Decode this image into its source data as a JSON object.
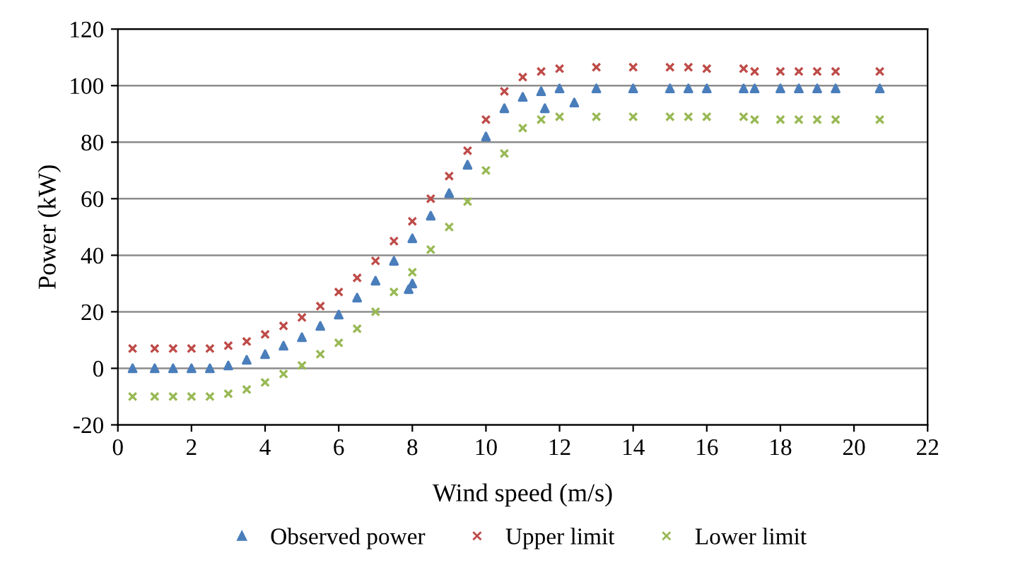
{
  "chart_data": {
    "type": "scatter",
    "xlabel": "Wind speed (m/s)",
    "ylabel": "Power (kW)",
    "xlim": [
      0,
      22
    ],
    "xticks": [
      0,
      2,
      4,
      6,
      8,
      10,
      12,
      14,
      16,
      18,
      20,
      22
    ],
    "ylim": [
      -20,
      120
    ],
    "yticks": [
      -20,
      0,
      20,
      40,
      60,
      80,
      100,
      120
    ],
    "grid": "y",
    "legend": "bottom",
    "series": [
      {
        "name": "Observed power",
        "color": "#4a7ebb",
        "marker": "triangle",
        "x": [
          0.4,
          1,
          1.5,
          2,
          2.5,
          3,
          3.5,
          4,
          4.5,
          5,
          5.5,
          6,
          6.5,
          7,
          7.5,
          7.9,
          8,
          8,
          8.5,
          9,
          9.5,
          10,
          10.5,
          11,
          11.5,
          11.6,
          12,
          12.4,
          13,
          14,
          15,
          15.5,
          16,
          17,
          17.3,
          18,
          18.5,
          19,
          19.5,
          20.7
        ],
        "values": [
          0,
          0,
          0,
          0,
          0,
          1,
          3,
          5,
          8,
          11,
          15,
          19,
          25,
          31,
          38,
          28,
          30,
          46,
          54,
          62,
          72,
          82,
          92,
          96,
          98,
          92,
          99,
          94,
          99,
          99,
          99,
          99,
          99,
          99,
          99,
          99,
          99,
          99,
          99,
          99
        ]
      },
      {
        "name": "Upper limit",
        "color": "#be4b48",
        "marker": "cross",
        "x": [
          0.4,
          1,
          1.5,
          2,
          2.5,
          3,
          3.5,
          4,
          4.5,
          5,
          5.5,
          6,
          6.5,
          7,
          7.5,
          8,
          8.5,
          9,
          9.5,
          10,
          10.5,
          11,
          11.5,
          12,
          13,
          14,
          15,
          15.5,
          16,
          17,
          17.3,
          18,
          18.5,
          19,
          19.5,
          20.7
        ],
        "values": [
          7,
          7,
          7,
          7,
          7,
          8,
          9.5,
          12,
          15,
          18,
          22,
          27,
          32,
          38,
          45,
          52,
          60,
          68,
          77,
          88,
          98,
          103,
          105,
          106,
          106.5,
          106.5,
          106.5,
          106.5,
          106,
          106,
          105,
          105,
          105,
          105,
          105,
          105
        ]
      },
      {
        "name": "Lower limit",
        "color": "#98b954",
        "marker": "cross",
        "x": [
          0.4,
          1,
          1.5,
          2,
          2.5,
          3,
          3.5,
          4,
          4.5,
          5,
          5.5,
          6,
          6.5,
          7,
          7.5,
          8,
          8.5,
          9,
          9.5,
          10,
          10.5,
          11,
          11.5,
          12,
          13,
          14,
          15,
          15.5,
          16,
          17,
          17.3,
          18,
          18.5,
          19,
          19.5,
          20.7
        ],
        "values": [
          -10,
          -10,
          -10,
          -10,
          -10,
          -9,
          -7.5,
          -5,
          -2,
          1,
          5,
          9,
          14,
          20,
          27,
          34,
          42,
          50,
          59,
          70,
          76,
          85,
          88,
          89,
          89,
          89,
          89,
          89,
          89,
          89,
          88,
          88,
          88,
          88,
          88,
          88
        ]
      }
    ]
  }
}
